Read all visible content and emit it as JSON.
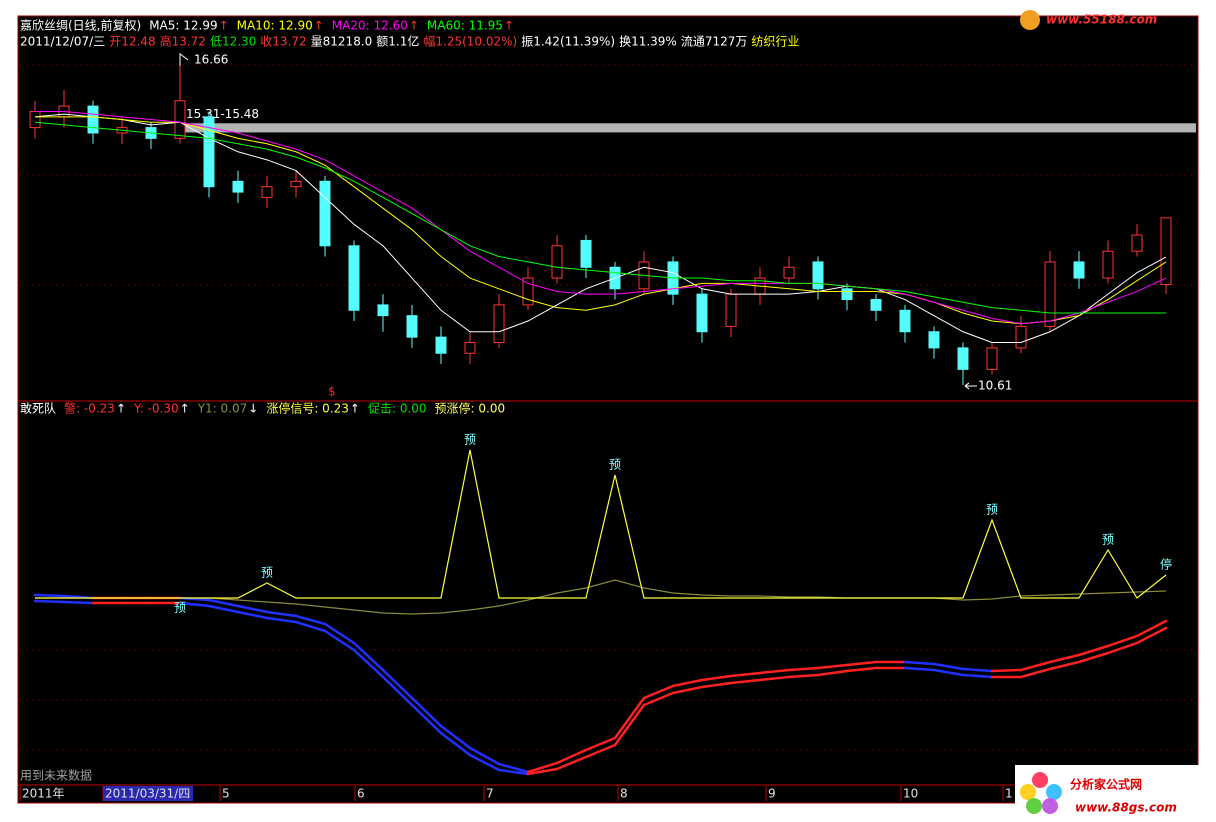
{
  "chart_data": [
    {
      "type": "candlestick",
      "title": "嘉欣丝绸(日线,前复权)",
      "info": [
        {
          "text": "2011/12/07/三",
          "color": "#ffffff"
        },
        {
          "text": "开12.48",
          "color": "#ff3232"
        },
        {
          "text": "高13.72",
          "color": "#ff3232"
        },
        {
          "text": "低12.30",
          "color": "#00e000"
        },
        {
          "text": "收13.72",
          "color": "#ff3232"
        },
        {
          "text": "量81218.0",
          "color": "#ffffff"
        },
        {
          "text": "额1.1亿",
          "color": "#ffffff"
        },
        {
          "text": "幅1.25(10.02%)",
          "color": "#ff3232"
        },
        {
          "text": "振1.42(11.39%)",
          "color": "#ffffff"
        },
        {
          "text": "换11.39%",
          "color": "#ffffff"
        },
        {
          "text": "流通7127万",
          "color": "#ffffff"
        },
        {
          "text": "纺织行业",
          "color": "#ffff00"
        }
      ],
      "open": [
        15.4,
        15.6,
        15.8,
        15.3,
        15.4,
        15.2,
        15.6,
        14.4,
        14.1,
        14.3,
        14.4,
        13.2,
        12.1,
        11.9,
        11.5,
        11.2,
        11.4,
        12.1,
        12.6,
        13.3,
        12.8,
        12.4,
        12.9,
        12.3,
        11.7,
        12.3,
        12.6,
        12.9,
        12.4,
        12.2,
        12.0,
        11.6,
        11.3,
        10.9,
        11.3,
        11.7,
        12.9,
        12.6,
        13.1,
        12.48
      ],
      "high": [
        15.9,
        16.1,
        15.9,
        15.6,
        15.5,
        16.66,
        15.7,
        14.6,
        14.5,
        14.6,
        14.5,
        13.3,
        12.3,
        12.1,
        11.7,
        11.6,
        12.3,
        12.8,
        13.4,
        13.4,
        12.9,
        13.1,
        13.0,
        12.4,
        12.4,
        12.8,
        13.0,
        13.0,
        12.5,
        12.3,
        12.1,
        11.7,
        11.4,
        11.4,
        11.9,
        13.1,
        13.1,
        13.3,
        13.6,
        13.72
      ],
      "low": [
        15.2,
        15.4,
        15.1,
        15.1,
        15.0,
        15.1,
        14.1,
        14.0,
        13.9,
        14.1,
        13.0,
        11.8,
        11.6,
        11.3,
        11.0,
        11.0,
        11.3,
        12.0,
        12.5,
        12.6,
        12.2,
        12.3,
        12.1,
        11.4,
        11.5,
        12.1,
        12.5,
        12.2,
        12.0,
        11.8,
        11.4,
        11.1,
        10.61,
        10.8,
        11.2,
        11.6,
        12.4,
        12.5,
        13.0,
        12.3
      ],
      "close": [
        15.7,
        15.8,
        15.3,
        15.4,
        15.2,
        15.9,
        14.3,
        14.2,
        14.3,
        14.4,
        13.2,
        12.0,
        11.9,
        11.5,
        11.2,
        11.4,
        12.1,
        12.6,
        13.2,
        12.8,
        12.4,
        12.9,
        12.3,
        11.6,
        12.3,
        12.6,
        12.8,
        12.4,
        12.2,
        12.0,
        11.6,
        11.3,
        10.9,
        11.3,
        11.7,
        12.9,
        12.6,
        13.1,
        13.4,
        13.72
      ],
      "up_color": "#ff3232",
      "down_color": "#54fcfc",
      "series": [
        {
          "legend": "MA5: 12.99",
          "trend": "↑",
          "color": "#ffffff",
          "values": [
            15.6,
            15.65,
            15.6,
            15.55,
            15.45,
            15.5,
            15.2,
            14.95,
            14.8,
            14.6,
            14.1,
            13.6,
            13.2,
            12.6,
            12.0,
            11.6,
            11.6,
            11.8,
            12.1,
            12.4,
            12.6,
            12.8,
            12.7,
            12.4,
            12.3,
            12.3,
            12.3,
            12.35,
            12.45,
            12.4,
            12.2,
            11.9,
            11.6,
            11.4,
            11.4,
            11.6,
            11.9,
            12.3,
            12.7,
            12.99
          ]
        },
        {
          "legend": "MA10: 12.90",
          "trend": "↑",
          "color": "#ffff00",
          "values": [
            15.6,
            15.6,
            15.6,
            15.55,
            15.5,
            15.5,
            15.35,
            15.2,
            15.1,
            14.95,
            14.7,
            14.3,
            13.9,
            13.5,
            13.0,
            12.6,
            12.4,
            12.2,
            12.05,
            12.0,
            12.1,
            12.3,
            12.4,
            12.5,
            12.5,
            12.45,
            12.4,
            12.35,
            12.35,
            12.35,
            12.3,
            12.15,
            11.95,
            11.8,
            11.75,
            11.8,
            11.9,
            12.2,
            12.55,
            12.9
          ]
        },
        {
          "legend": "MA20: 12.60",
          "trend": "↑",
          "color": "#ff00ff",
          "values": [
            15.7,
            15.7,
            15.65,
            15.6,
            15.55,
            15.5,
            15.4,
            15.3,
            15.15,
            15.0,
            14.8,
            14.5,
            14.2,
            13.9,
            13.5,
            13.1,
            12.8,
            12.5,
            12.35,
            12.3,
            12.3,
            12.35,
            12.4,
            12.45,
            12.5,
            12.5,
            12.5,
            12.5,
            12.45,
            12.4,
            12.3,
            12.15,
            12.0,
            11.85,
            11.75,
            11.8,
            11.95,
            12.15,
            12.35,
            12.6
          ]
        },
        {
          "legend": "MA60: 11.95",
          "trend": "↑",
          "color": "#00ff00",
          "values": [
            15.5,
            15.45,
            15.4,
            15.35,
            15.3,
            15.25,
            15.2,
            15.1,
            15.0,
            14.85,
            14.65,
            14.4,
            14.1,
            13.8,
            13.5,
            13.2,
            13.0,
            12.9,
            12.8,
            12.75,
            12.7,
            12.65,
            12.6,
            12.6,
            12.55,
            12.55,
            12.5,
            12.5,
            12.45,
            12.4,
            12.35,
            12.25,
            12.15,
            12.05,
            12.0,
            11.95,
            11.95,
            11.95,
            11.95,
            11.95
          ]
        }
      ],
      "gap": [
        15.31,
        15.48
      ],
      "gap_label": "15.31-15.48",
      "signal_mark": "$",
      "ylim": [
        10.33,
        17.44
      ]
    },
    {
      "type": "line",
      "title": "敢死队",
      "series": [
        {
          "legend": "警: -0.23",
          "trend": "↑",
          "color": "#ff3030",
          "up_color": "#ff2020",
          "down_color": "#2030ff",
          "values": [
            0.03,
            0.02,
            0.0,
            0.0,
            0.0,
            0.0,
            -0.02,
            -0.08,
            -0.14,
            -0.18,
            -0.26,
            -0.45,
            -0.72,
            -1.0,
            -1.28,
            -1.5,
            -1.66,
            -1.74,
            -1.65,
            -1.52,
            -1.4,
            -1.0,
            -0.88,
            -0.82,
            -0.78,
            -0.75,
            -0.72,
            -0.7,
            -0.67,
            -0.64,
            -0.64,
            -0.66,
            -0.71,
            -0.73,
            -0.72,
            -0.64,
            -0.57,
            -0.48,
            -0.38,
            -0.23
          ]
        },
        {
          "legend": "Y: -0.30",
          "trend": "↑",
          "color": "#ff3030",
          "up_color": "#ff2020",
          "down_color": "#2030ff",
          "values": [
            -0.03,
            -0.04,
            -0.05,
            -0.05,
            -0.05,
            -0.05,
            -0.08,
            -0.14,
            -0.2,
            -0.24,
            -0.33,
            -0.52,
            -0.79,
            -1.07,
            -1.35,
            -1.57,
            -1.72,
            -1.76,
            -1.71,
            -1.59,
            -1.47,
            -1.07,
            -0.95,
            -0.89,
            -0.85,
            -0.82,
            -0.79,
            -0.77,
            -0.73,
            -0.7,
            -0.7,
            -0.72,
            -0.77,
            -0.79,
            -0.79,
            -0.71,
            -0.64,
            -0.55,
            -0.45,
            -0.3
          ]
        },
        {
          "legend": "Y1: 0.07",
          "trend": "↓",
          "color": "#8a8a3a",
          "values": [
            0.0,
            0.0,
            0.0,
            0.0,
            0.0,
            0.0,
            0.0,
            -0.02,
            -0.04,
            -0.06,
            -0.09,
            -0.12,
            -0.15,
            -0.16,
            -0.15,
            -0.12,
            -0.08,
            -0.02,
            0.05,
            0.1,
            0.18,
            0.1,
            0.05,
            0.03,
            0.02,
            0.02,
            0.01,
            0.01,
            0.0,
            0.0,
            0.0,
            0.0,
            -0.02,
            -0.01,
            0.02,
            0.03,
            0.04,
            0.05,
            0.06,
            0.07
          ]
        },
        {
          "legend": "涨停信号: 0.23",
          "trend": "↑",
          "color": "#ffff40",
          "label_color": "#80ffff",
          "values": [
            0,
            0,
            0,
            0,
            0,
            0,
            0,
            0,
            0.15,
            0,
            0,
            0,
            0,
            0,
            0,
            1.48,
            0,
            0,
            0,
            0,
            1.23,
            0,
            0,
            0,
            0,
            0,
            0,
            0,
            0,
            0,
            0,
            0,
            0,
            0.78,
            0,
            0,
            0,
            0.48,
            0,
            0.23
          ],
          "value_labels": [
            null,
            null,
            null,
            null,
            null,
            "预",
            null,
            null,
            "预",
            null,
            null,
            null,
            null,
            null,
            null,
            "预",
            null,
            null,
            null,
            null,
            "预",
            null,
            null,
            null,
            null,
            null,
            null,
            null,
            null,
            null,
            null,
            null,
            null,
            "预",
            null,
            null,
            null,
            "预",
            null,
            "停"
          ]
        }
      ],
      "legend_extra": [
        {
          "legend": "促击: 0.00",
          "color": "#00e000"
        },
        {
          "legend": "预涨停: 0.00",
          "color": "#ffff60"
        }
      ],
      "ylim": [
        -1.87,
        1.83
      ]
    }
  ],
  "footer": {
    "note": "用到未来数据",
    "dates": [
      "2011年",
      "2011/03/31/四",
      "5",
      "6",
      "7",
      "8",
      "9",
      "10",
      "1"
    ]
  },
  "watermark": {
    "top": "www.55188.com",
    "brand": "分析家公式网",
    "url": "www.88gs.com"
  }
}
